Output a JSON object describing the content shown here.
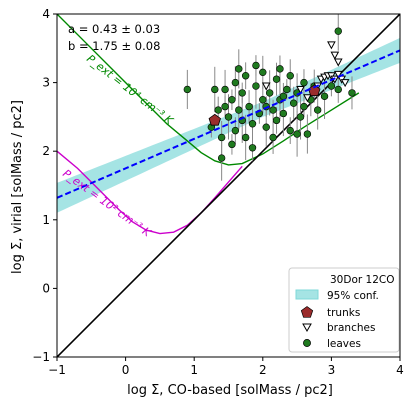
{
  "chart_data": {
    "type": "scatter",
    "xlabel": "log Σ, CO-based [solMass / pc2]",
    "ylabel": "log Σ, virial [solMass / pc2]",
    "xlim": [
      -1,
      4
    ],
    "ylim": [
      -1,
      4
    ],
    "xticks": [
      "−1",
      "0",
      "1",
      "2",
      "3",
      "4"
    ],
    "yticks": [
      "−1",
      "0",
      "1",
      "2",
      "3",
      "4"
    ],
    "grid": false,
    "annotations": {
      "a": "a = 0.43 ± 0.03",
      "b": "b = 1.75 ± 0.08",
      "pext_high": "P_ext = 10⁴ cm⁻³ K",
      "pext_low": "P_ext = 10² cm⁻³ K"
    },
    "fit": {
      "a": 0.43,
      "b": 1.75,
      "band": 0.2,
      "color": "#0000ff"
    },
    "one_to_one": true,
    "legend": {
      "position": "lower right",
      "title": "30Dor 12CO",
      "entries": [
        {
          "label": "95% conf.",
          "kind": "band",
          "color": "#7fd8d8"
        },
        {
          "label": "trunks",
          "kind": "pentagon",
          "color": "#9b2c2c"
        },
        {
          "label": "branches",
          "kind": "triangle-down",
          "color": "#ffffff"
        },
        {
          "label": "leaves",
          "kind": "circle",
          "color": "#1f7a1f"
        }
      ]
    },
    "pressure_curves": [
      {
        "label": "P_ext = 10⁴ cm⁻³ K",
        "color": "#008800",
        "x": [
          -1.0,
          -0.6,
          -0.2,
          0.2,
          0.6,
          0.9,
          1.1,
          1.3,
          1.5,
          1.7,
          2.0,
          2.3,
          2.6,
          3.0,
          3.4
        ],
        "y": [
          4.0,
          3.6,
          3.2,
          2.8,
          2.4,
          2.15,
          1.98,
          1.86,
          1.8,
          1.82,
          1.96,
          2.15,
          2.35,
          2.6,
          2.85
        ]
      },
      {
        "label": "P_ext = 10² cm⁻³ K",
        "color": "#cc00cc",
        "x": [
          -1.0,
          -0.7,
          -0.4,
          -0.1,
          0.1,
          0.3,
          0.5,
          0.7,
          0.9,
          1.1,
          1.3,
          1.5,
          1.7
        ],
        "y": [
          2.0,
          1.75,
          1.45,
          1.15,
          0.97,
          0.85,
          0.8,
          0.82,
          0.92,
          1.1,
          1.32,
          1.55,
          1.78
        ]
      }
    ],
    "series": [
      {
        "name": "trunks",
        "marker": "pentagon",
        "points": [
          [
            1.3,
            2.45
          ],
          [
            2.75,
            2.88
          ]
        ]
      },
      {
        "name": "branches",
        "marker": "triangle-down",
        "points": [
          [
            2.05,
            2.95
          ],
          [
            2.55,
            2.9
          ],
          [
            2.65,
            2.78
          ],
          [
            2.85,
            3.05
          ],
          [
            2.9,
            3.08
          ],
          [
            2.95,
            3.1
          ],
          [
            3.0,
            3.1
          ],
          [
            3.05,
            3.05
          ],
          [
            3.1,
            3.12
          ],
          [
            3.15,
            3.05
          ],
          [
            3.0,
            3.55
          ],
          [
            3.05,
            3.4
          ],
          [
            3.1,
            3.3
          ],
          [
            3.2,
            3.0
          ],
          [
            2.8,
            2.95
          ]
        ]
      },
      {
        "name": "leaves",
        "marker": "circle",
        "points": [
          [
            1.25,
            2.35
          ],
          [
            1.35,
            2.6
          ],
          [
            1.4,
            2.2
          ],
          [
            1.45,
            2.9
          ],
          [
            1.5,
            2.5
          ],
          [
            1.55,
            2.75
          ],
          [
            1.6,
            2.3
          ],
          [
            1.6,
            3.0
          ],
          [
            1.65,
            2.6
          ],
          [
            1.7,
            2.45
          ],
          [
            1.7,
            2.85
          ],
          [
            1.75,
            3.1
          ],
          [
            1.8,
            2.65
          ],
          [
            1.85,
            2.4
          ],
          [
            1.9,
            2.95
          ],
          [
            1.95,
            2.55
          ],
          [
            2.0,
            2.75
          ],
          [
            2.0,
            3.15
          ],
          [
            2.05,
            2.35
          ],
          [
            2.1,
            2.85
          ],
          [
            2.15,
            2.6
          ],
          [
            2.2,
            2.45
          ],
          [
            2.2,
            3.05
          ],
          [
            2.25,
            2.75
          ],
          [
            2.3,
            2.55
          ],
          [
            2.35,
            2.9
          ],
          [
            2.4,
            2.3
          ],
          [
            2.45,
            2.7
          ],
          [
            2.5,
            2.85
          ],
          [
            2.55,
            2.5
          ],
          [
            2.6,
            2.65
          ],
          [
            2.6,
            3.0
          ],
          [
            2.7,
            2.75
          ],
          [
            2.8,
            2.6
          ],
          [
            2.9,
            2.8
          ],
          [
            3.0,
            2.95
          ],
          [
            3.1,
            2.9
          ],
          [
            3.3,
            2.85
          ],
          [
            3.1,
            3.75
          ],
          [
            1.4,
            1.9
          ],
          [
            1.55,
            2.1
          ],
          [
            1.85,
            2.05
          ],
          [
            2.15,
            2.2
          ],
          [
            2.65,
            2.25
          ],
          [
            1.3,
            2.9
          ],
          [
            1.9,
            3.25
          ],
          [
            2.25,
            3.2
          ],
          [
            2.4,
            3.1
          ],
          [
            0.9,
            2.9
          ],
          [
            1.75,
            2.2
          ],
          [
            2.05,
            2.65
          ],
          [
            2.3,
            2.8
          ],
          [
            2.75,
            2.95
          ],
          [
            1.65,
            3.2
          ],
          [
            2.5,
            2.25
          ],
          [
            1.45,
            2.65
          ]
        ]
      }
    ]
  }
}
